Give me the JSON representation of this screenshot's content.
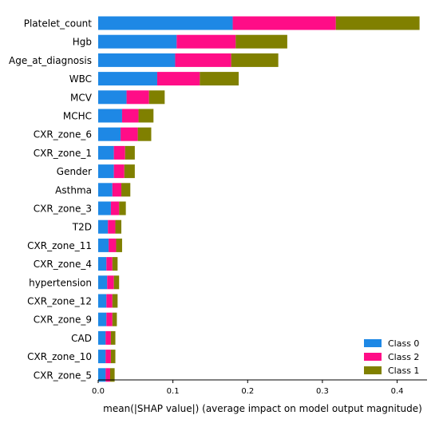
{
  "chart_data": {
    "type": "bar",
    "orientation": "horizontal",
    "stacked": true,
    "categories": [
      "Platelet_count",
      "Hgb",
      "Age_at_diagnosis",
      "WBC",
      "MCV",
      "MCHC",
      "CXR_zone_6",
      "CXR_zone_1",
      "Gender",
      "Asthma",
      "CXR_zone_3",
      "T2D",
      "CXR_zone_11",
      "CXR_zone_4",
      "hypertension",
      "CXR_zone_12",
      "CXR_zone_9",
      "CAD",
      "CXR_zone_10",
      "CXR_zone_5"
    ],
    "series": [
      {
        "name": "Class 0",
        "color": "#1e88e5",
        "values": [
          0.18,
          0.105,
          0.103,
          0.079,
          0.038,
          0.032,
          0.03,
          0.021,
          0.021,
          0.019,
          0.017,
          0.013,
          0.014,
          0.011,
          0.012,
          0.011,
          0.011,
          0.01,
          0.01,
          0.01
        ]
      },
      {
        "name": "Class 2",
        "color": "#ff0d87",
        "values": [
          0.138,
          0.079,
          0.075,
          0.057,
          0.03,
          0.022,
          0.023,
          0.015,
          0.014,
          0.012,
          0.011,
          0.01,
          0.01,
          0.008,
          0.009,
          0.008,
          0.008,
          0.007,
          0.007,
          0.006
        ]
      },
      {
        "name": "Class 1",
        "color": "#808000",
        "values": [
          0.112,
          0.069,
          0.063,
          0.052,
          0.021,
          0.02,
          0.018,
          0.013,
          0.014,
          0.012,
          0.009,
          0.008,
          0.008,
          0.007,
          0.007,
          0.007,
          0.006,
          0.006,
          0.006,
          0.006
        ]
      }
    ],
    "legend_order": [
      "Class 0",
      "Class 2",
      "Class 1"
    ],
    "legend_position": "bottom-right",
    "xlabel": "mean(|SHAP value|) (average impact on model output magnitude)",
    "ylabel": "",
    "xlim": [
      0,
      0.44
    ],
    "xticks": [
      0.0,
      0.1,
      0.2,
      0.3,
      0.4
    ],
    "xtick_labels": [
      "0.0",
      "0.1",
      "0.2",
      "0.3",
      "0.4"
    ],
    "grid": false
  }
}
